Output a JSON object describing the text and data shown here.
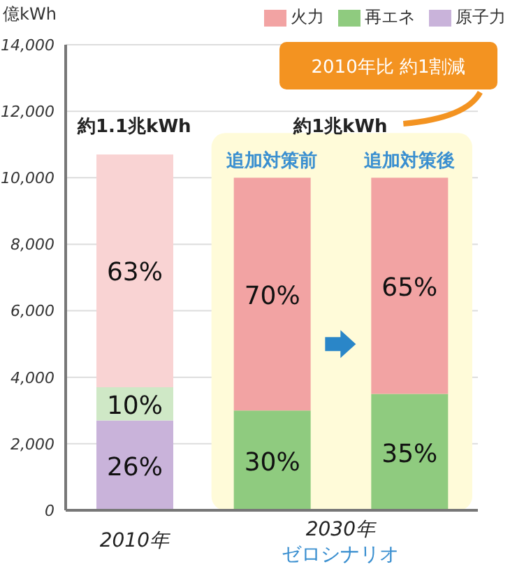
{
  "chart_data": {
    "type": "bar",
    "stacked": true,
    "ylabel": "億kWh",
    "categories": [
      "2010年",
      "追加対策前",
      "追加対策後"
    ],
    "series": [
      {
        "name": "原子力",
        "color": "#c9b3da",
        "colors": [
          "#c9b3da",
          "#c9b3da",
          "#c9b3da"
        ],
        "values": [
          2700,
          null,
          null
        ]
      },
      {
        "name": "再エネ",
        "color": "#8fcb7f",
        "colors": [
          "#cfe8c6",
          "#8fcb7f",
          "#8fcb7f"
        ],
        "values": [
          1000,
          3000,
          3500
        ]
      },
      {
        "name": "火力",
        "color": "#f2a3a3",
        "colors": [
          "#f9d3d3",
          "#f2a3a3",
          "#f2a3a3"
        ],
        "values": [
          7000,
          7000,
          6500
        ]
      }
    ],
    "ylim": [
      0,
      14000
    ],
    "yticks": [
      {
        "value": 0,
        "label": "0"
      },
      {
        "value": 2000,
        "label": "2,000"
      },
      {
        "value": 4000,
        "label": "4,000"
      },
      {
        "value": 6000,
        "label": "6,000"
      },
      {
        "value": 8000,
        "label": "8,000"
      },
      {
        "value": 10000,
        "label": "10,000"
      },
      {
        "value": 12000,
        "label": "12,000"
      },
      {
        "value": 14000,
        "label": "14,000"
      }
    ],
    "grid": "y",
    "legend": "top right",
    "bands": [
      {
        "axis": "x",
        "from": "追加対策前",
        "to": "追加対策後",
        "color": "#fffbd9"
      }
    ],
    "annotations": [
      "約1.1兆kWh",
      "約1兆kWh",
      "2010年比 約1割減",
      "2030年",
      "ゼロシナリオ",
      "26%",
      "10%",
      "30%",
      "35%",
      "63%",
      "70%",
      "65%"
    ]
  }
}
